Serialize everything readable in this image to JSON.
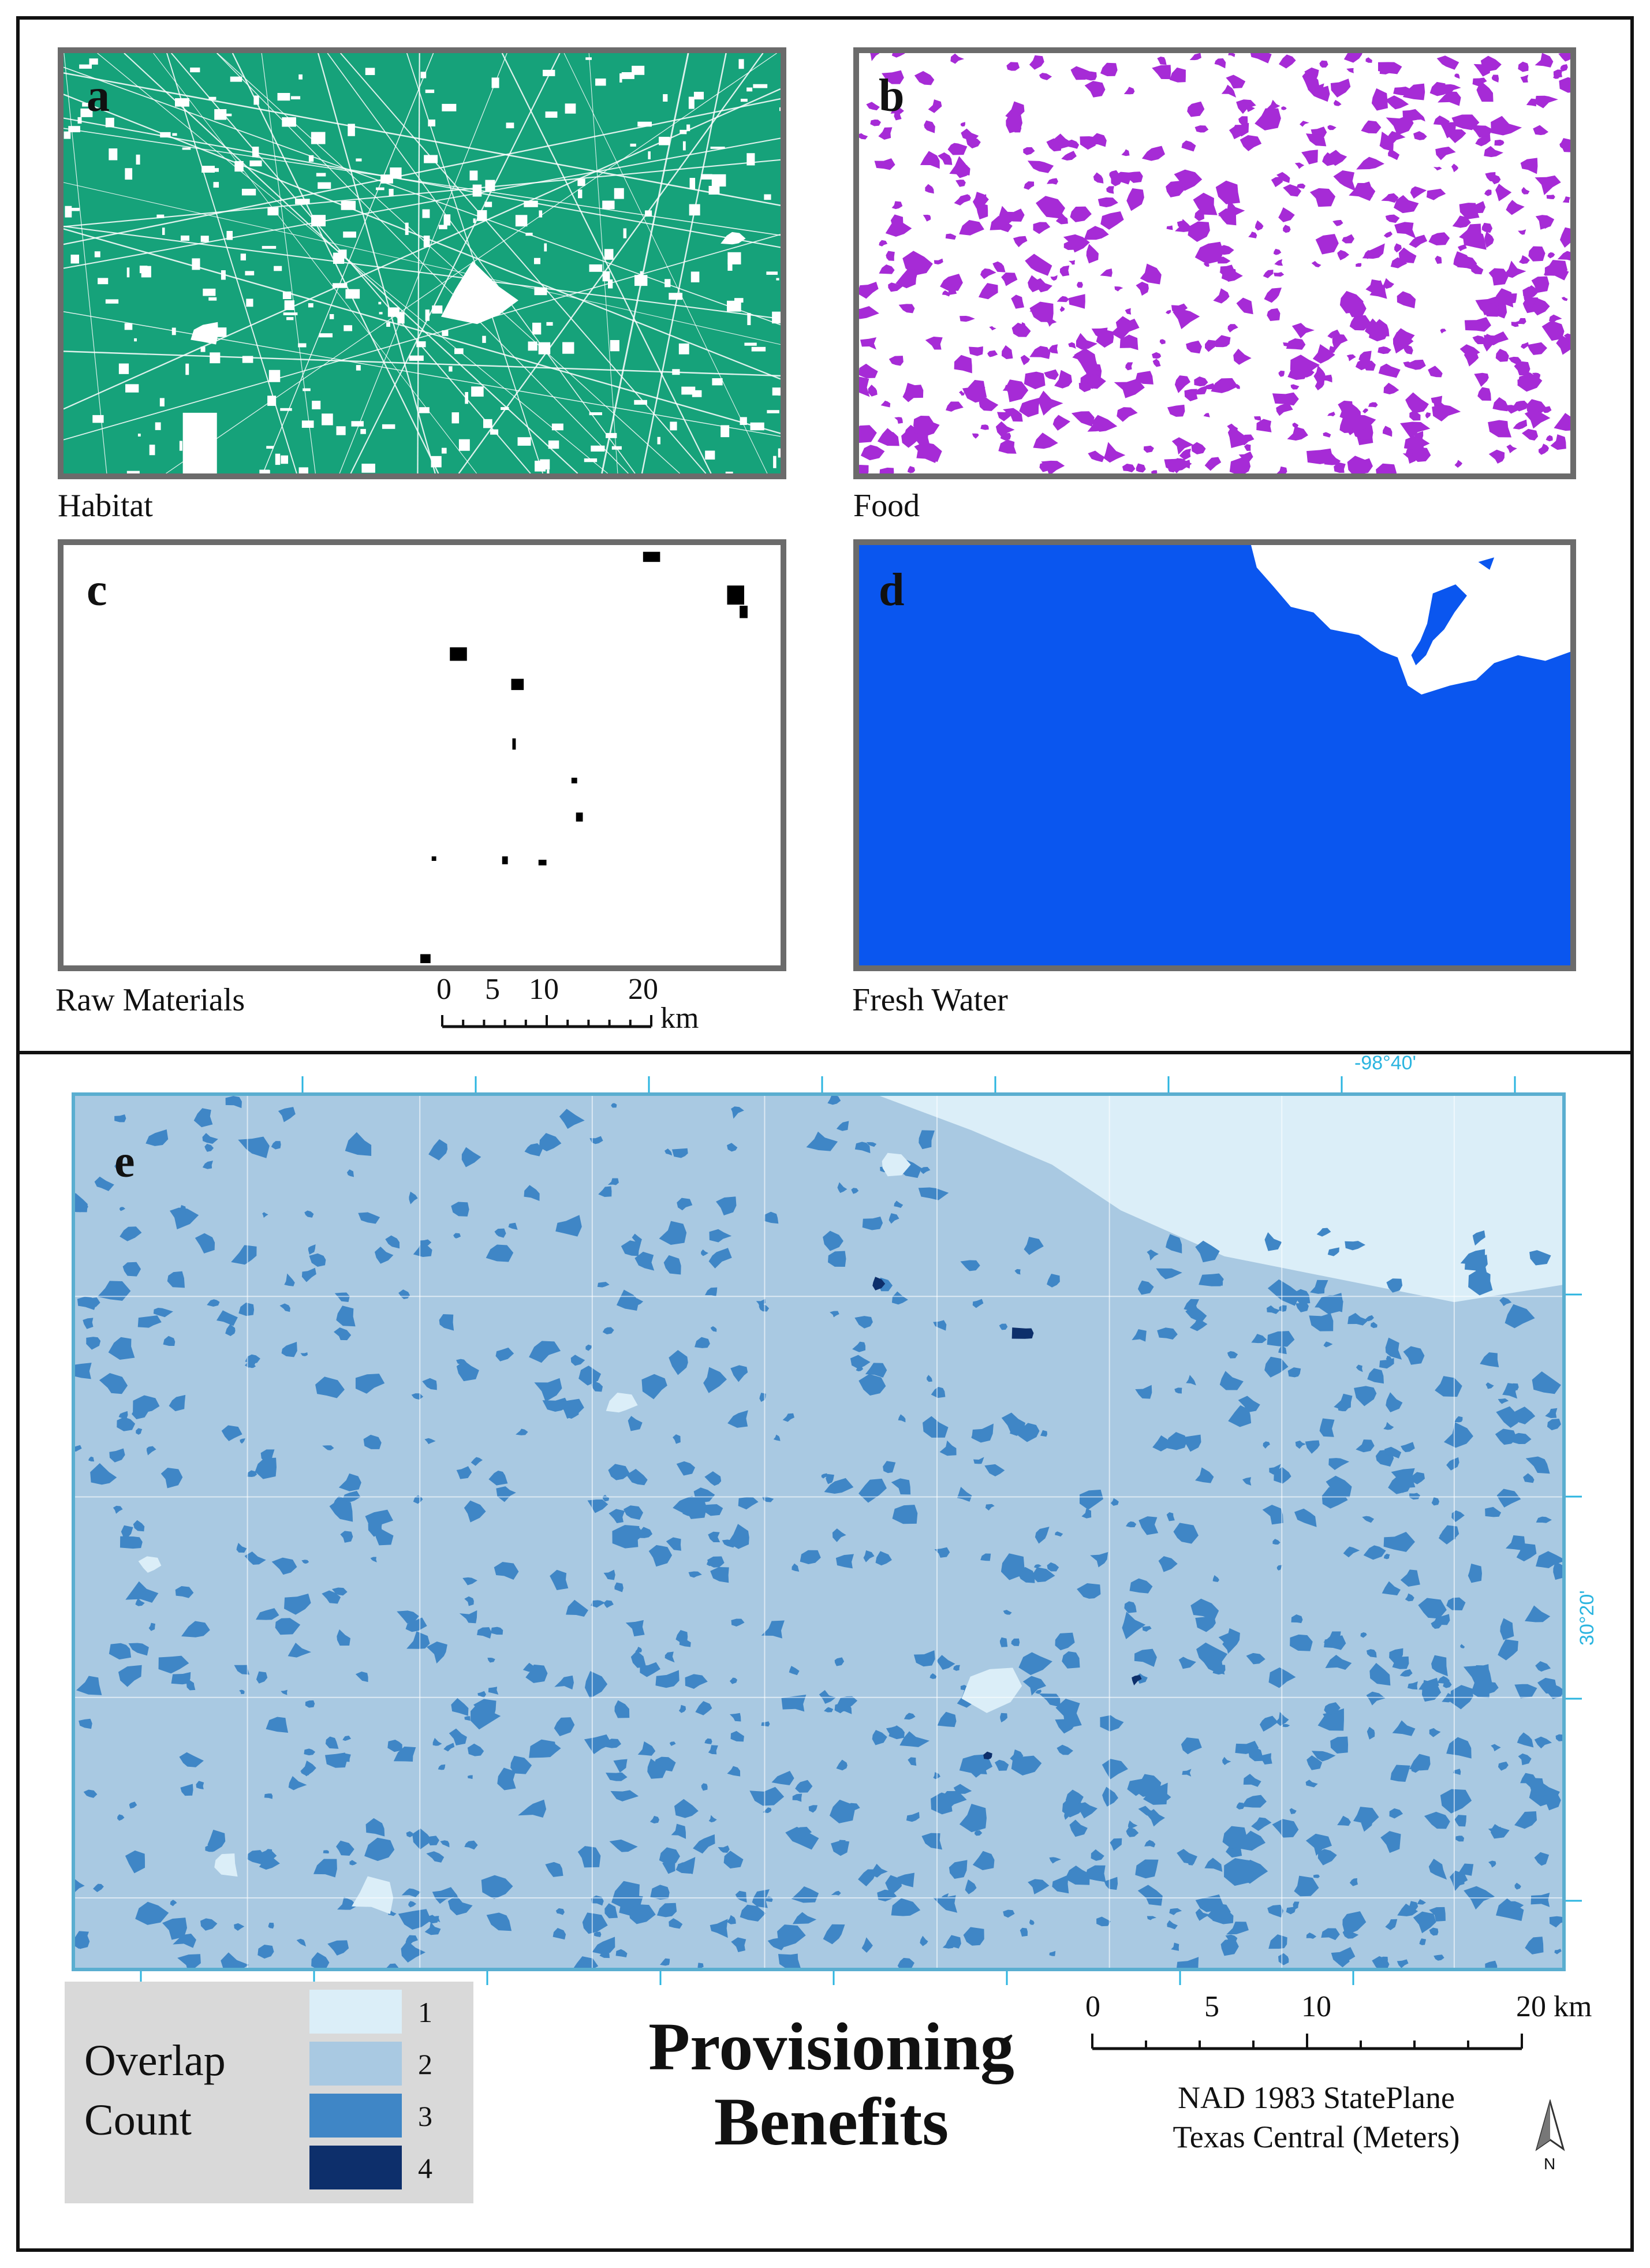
{
  "panels": {
    "a": {
      "letter": "a",
      "caption": "Habitat",
      "fill_color": "#16a27a",
      "gap_color": "#ffffff"
    },
    "b": {
      "letter": "b",
      "caption": "Food",
      "fill_color": "#ffffff",
      "patch_color": "#a62bd6"
    },
    "c": {
      "letter": "c",
      "caption": "Raw Materials",
      "fill_color": "#ffffff",
      "patch_color": "#000000"
    },
    "d": {
      "letter": "d",
      "caption": "Fresh Water",
      "fill_color": "#0a56ef",
      "gap_color": "#ffffff"
    },
    "e": {
      "letter": "e"
    }
  },
  "small_scalebar": {
    "ticks": [
      "0",
      "5",
      "10",
      "20"
    ],
    "unit": "km"
  },
  "main_scalebar": {
    "ticks": [
      "0",
      "5",
      "10",
      "20 km"
    ]
  },
  "graticule": {
    "longitude_label": "-98°40'",
    "latitude_label": "30°20'",
    "color": "#2bb5e0"
  },
  "legend": {
    "title_line1": "Overlap",
    "title_line2": "Count",
    "items": [
      {
        "label": "1",
        "color": "#dbeef8"
      },
      {
        "label": "2",
        "color": "#a9c9e2"
      },
      {
        "label": "3",
        "color": "#3f86c6"
      },
      {
        "label": "4",
        "color": "#0d2f6b"
      }
    ]
  },
  "title": {
    "line1": "Provisioning",
    "line2": "Benefits"
  },
  "projection": {
    "line1": "NAD 1983 StatePlane",
    "line2": "Texas Central (Meters)"
  },
  "north_arrow": {
    "label": "N"
  }
}
